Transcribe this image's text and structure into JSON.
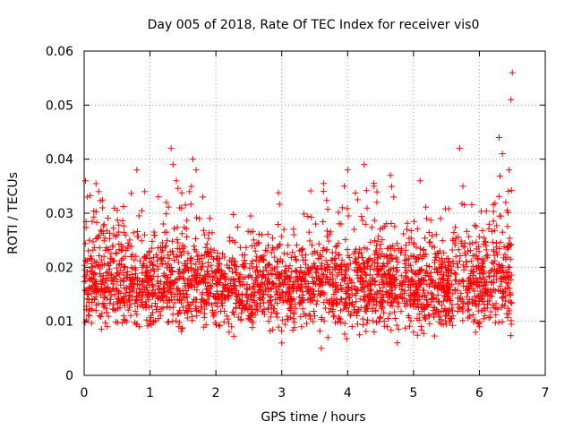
{
  "chart_data": {
    "type": "scatter",
    "title": "Day 005 of 2018, Rate Of TEC Index for receiver vis0",
    "xlabel": "GPS time / hours",
    "ylabel": "ROTI / TECUs",
    "xlim": [
      0,
      7
    ],
    "ylim": [
      0,
      0.06
    ],
    "x_ticks": [
      0,
      1,
      2,
      3,
      4,
      5,
      6,
      7
    ],
    "y_ticks": [
      0,
      0.01,
      0.02,
      0.03,
      0.04,
      0.05,
      0.06
    ],
    "x_tick_labels": [
      "0",
      "1",
      "2",
      "3",
      "4",
      "5",
      "6",
      "7"
    ],
    "y_tick_labels": [
      "0",
      "0.01",
      "0.02",
      "0.03",
      "0.04",
      "0.05",
      "0.06"
    ],
    "grid": true,
    "marker": "+",
    "color": "#ff0000",
    "series": [
      {
        "name": "vis0",
        "x": [
          0.02,
          0.05,
          0.08,
          0.12,
          0.18,
          0.22,
          0.28,
          0.3,
          0.35,
          0.4,
          0.45,
          0.5,
          0.6,
          0.68,
          0.75,
          0.8,
          0.88,
          0.92,
          1.0,
          1.05,
          1.12,
          1.2,
          1.28,
          1.32,
          1.35,
          1.4,
          1.45,
          1.5,
          1.55,
          1.6,
          1.65,
          1.7,
          1.75,
          1.8,
          1.9,
          2.0,
          2.1,
          2.2,
          2.3,
          2.4,
          2.5,
          2.6,
          2.7,
          2.8,
          2.9,
          3.0,
          3.1,
          3.2,
          3.3,
          3.4,
          3.5,
          3.6,
          3.7,
          3.8,
          3.9,
          3.95,
          4.0,
          4.1,
          4.2,
          4.25,
          4.3,
          4.4,
          4.5,
          4.6,
          4.65,
          4.7,
          4.8,
          4.9,
          5.0,
          5.1,
          5.2,
          5.3,
          5.4,
          5.5,
          5.6,
          5.7,
          5.75,
          5.8,
          5.9,
          6.0,
          6.1,
          6.2,
          6.3,
          6.35,
          6.4,
          6.45,
          6.48,
          6.5
        ],
        "y": [
          0.036,
          0.033,
          0.025,
          0.018,
          0.012,
          0.034,
          0.031,
          0.022,
          0.009,
          0.014,
          0.026,
          0.019,
          0.011,
          0.024,
          0.016,
          0.038,
          0.013,
          0.034,
          0.021,
          0.01,
          0.016,
          0.028,
          0.014,
          0.042,
          0.039,
          0.036,
          0.031,
          0.019,
          0.012,
          0.034,
          0.04,
          0.038,
          0.029,
          0.033,
          0.022,
          0.017,
          0.015,
          0.008,
          0.019,
          0.013,
          0.011,
          0.023,
          0.026,
          0.01,
          0.014,
          0.006,
          0.018,
          0.022,
          0.009,
          0.016,
          0.011,
          0.005,
          0.007,
          0.02,
          0.028,
          0.035,
          0.038,
          0.027,
          0.018,
          0.039,
          0.013,
          0.035,
          0.022,
          0.009,
          0.037,
          0.033,
          0.015,
          0.027,
          0.008,
          0.036,
          0.029,
          0.012,
          0.023,
          0.019,
          0.011,
          0.042,
          0.035,
          0.021,
          0.016,
          0.009,
          0.024,
          0.013,
          0.044,
          0.041,
          0.032,
          0.038,
          0.051,
          0.056
        ]
      }
    ],
    "dense_cloud": {
      "x_range": [
        0,
        6.5
      ],
      "y_floor": 0.003,
      "y_typical_range": [
        0.005,
        0.025
      ],
      "count": 2600
    }
  }
}
